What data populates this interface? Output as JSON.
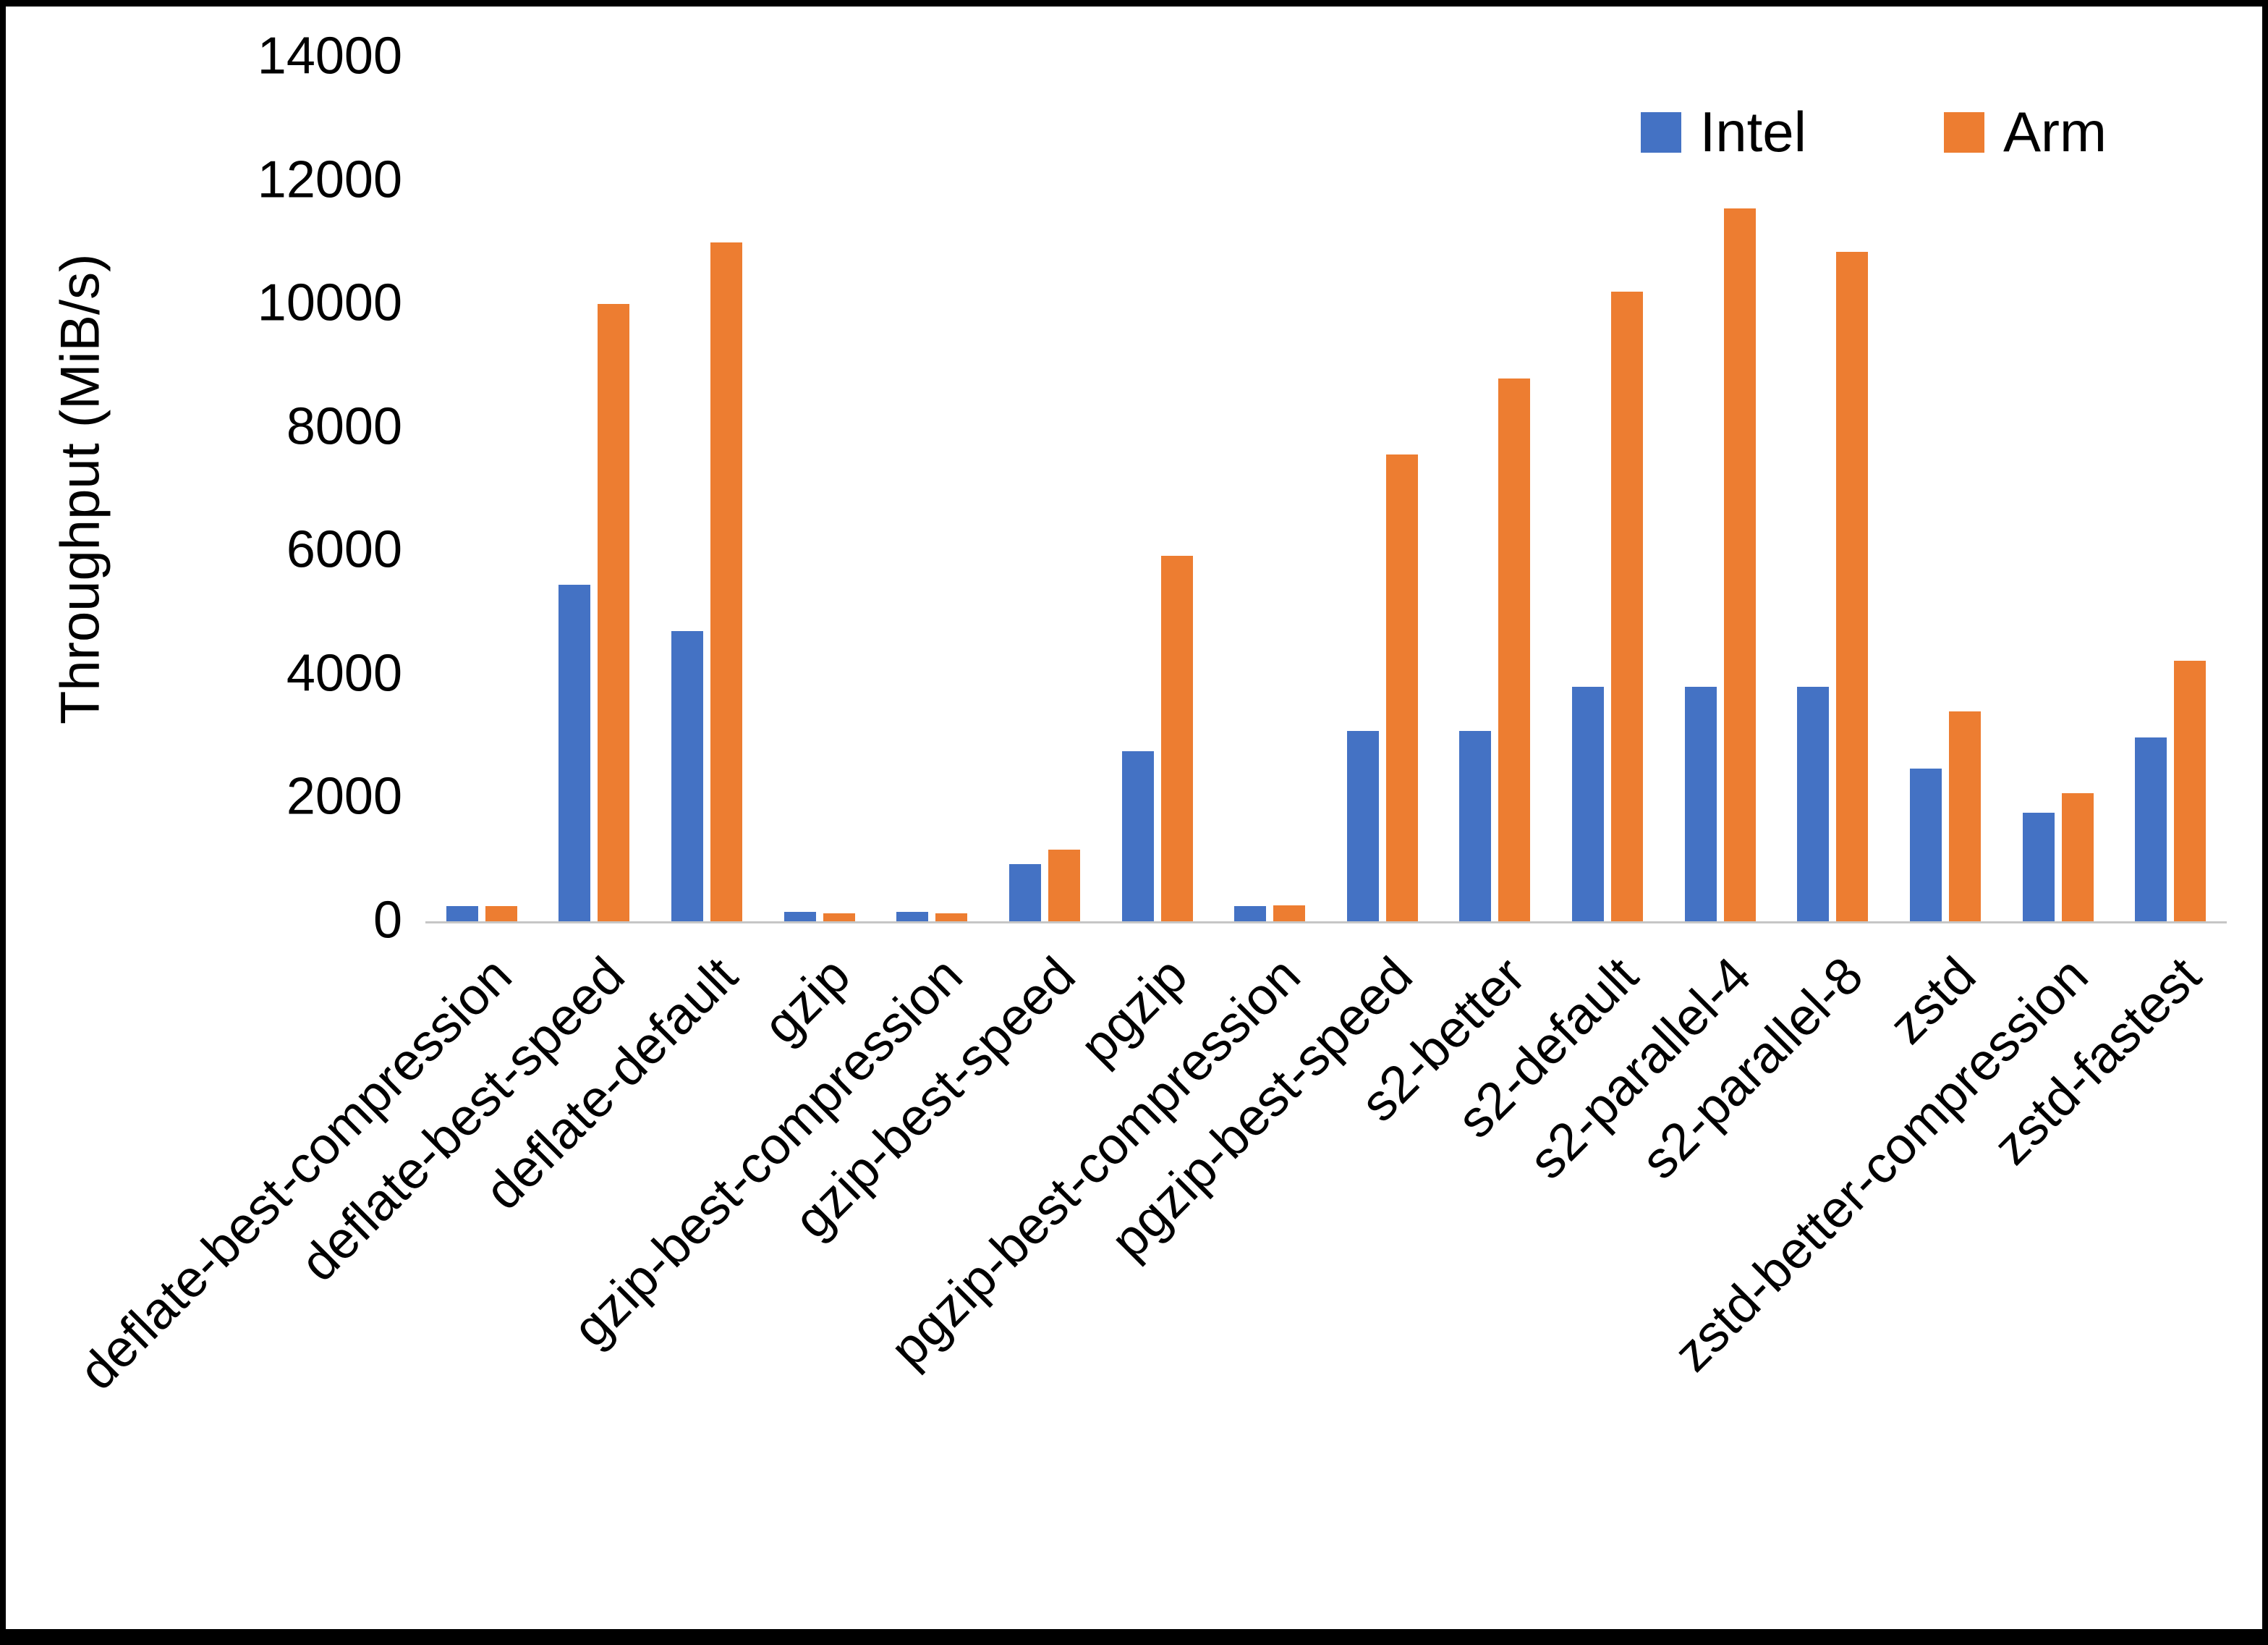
{
  "chart_data": {
    "type": "bar",
    "title": "",
    "xlabel": "",
    "ylabel": "Throughput (MiB/s)",
    "ylim": [
      0,
      14000
    ],
    "yticks": [
      0,
      2000,
      4000,
      6000,
      8000,
      10000,
      12000,
      14000
    ],
    "grid": false,
    "legend_position": "top-right",
    "categories": [
      "deflate-best-compression",
      "deflate-best-speed",
      "deflate-default",
      "gzip",
      "gzip-best-compression",
      "gzip-best-speed",
      "pgzip",
      "pgzip-best-compression",
      "pgzip-best-speed",
      "s2-better",
      "s2-default",
      "s2-parallel-4",
      "s2-parallel-8",
      "zstd",
      "zstd-better-compression",
      "zstd-fastest"
    ],
    "series": [
      {
        "name": "Intel",
        "color": "#4472C4",
        "values": [
          250,
          5450,
          4700,
          150,
          150,
          930,
          2760,
          250,
          3080,
          3080,
          3800,
          3800,
          3800,
          2470,
          1760,
          2980
        ]
      },
      {
        "name": "Arm",
        "color": "#ED7D31",
        "values": [
          250,
          10000,
          11000,
          130,
          130,
          1160,
          5920,
          260,
          7560,
          8800,
          10200,
          11550,
          10850,
          3400,
          2070,
          4220
        ]
      }
    ]
  },
  "colors": {
    "intel": "#4472C4",
    "arm": "#ED7D31",
    "axis_line": "#C6C6C6",
    "background": "#FFFFFF",
    "frame_border": "#000000",
    "text": "#000000"
  }
}
